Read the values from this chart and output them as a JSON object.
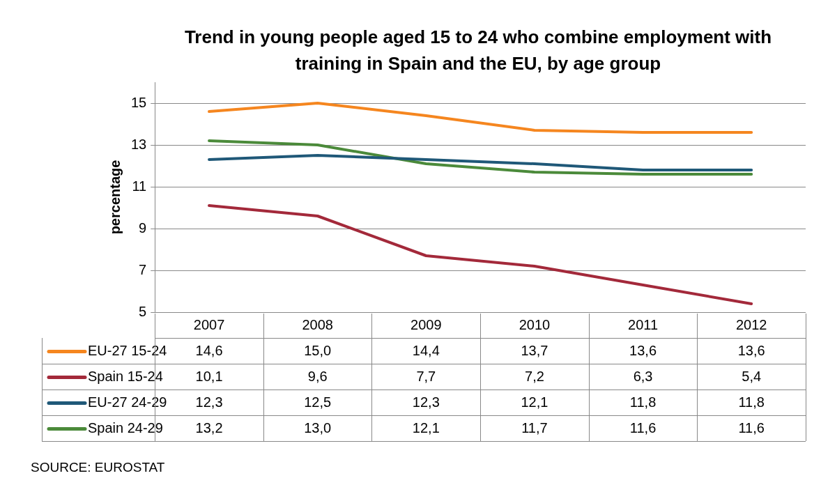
{
  "chart_data": {
    "type": "line",
    "title": "Trend in young people aged 15 to 24 who combine employment with\ntraining in Spain and the EU, by age group",
    "ylabel": "percentage",
    "categories": [
      "2007",
      "2008",
      "2009",
      "2010",
      "2011",
      "2012"
    ],
    "series": [
      {
        "name": "EU-27 15-24",
        "color": "#f5861f",
        "values": [
          14.6,
          15.0,
          14.4,
          13.7,
          13.6,
          13.6
        ],
        "value_labels": [
          "14,6",
          "15,0",
          "14,4",
          "13,7",
          "13,6",
          "13,6"
        ]
      },
      {
        "name": "Spain 15-24",
        "color": "#a3293a",
        "values": [
          10.1,
          9.6,
          7.7,
          7.2,
          6.3,
          5.4
        ],
        "value_labels": [
          "10,1",
          "9,6",
          "7,7",
          "7,2",
          "6,3",
          "5,4"
        ]
      },
      {
        "name": "EU-27 24-29",
        "color": "#1f5878",
        "values": [
          12.3,
          12.5,
          12.3,
          12.1,
          11.8,
          11.8
        ],
        "value_labels": [
          "12,3",
          "12,5",
          "12,3",
          "12,1",
          "11,8",
          "11,8"
        ]
      },
      {
        "name": "Spain 24-29",
        "color": "#4b8a3a",
        "values": [
          13.2,
          13.0,
          12.1,
          11.7,
          11.6,
          11.6
        ],
        "value_labels": [
          "13,2",
          "13,0",
          "12,1",
          "11,7",
          "11,6",
          "11,6"
        ]
      }
    ],
    "ylim": [
      5,
      16
    ],
    "yticks": [
      5,
      7,
      9,
      11,
      13,
      15
    ],
    "grid": "y",
    "legend": "bottom",
    "marker": "none",
    "line_style": "solid",
    "annotations": [
      "SOURCE: EUROSTAT"
    ]
  }
}
